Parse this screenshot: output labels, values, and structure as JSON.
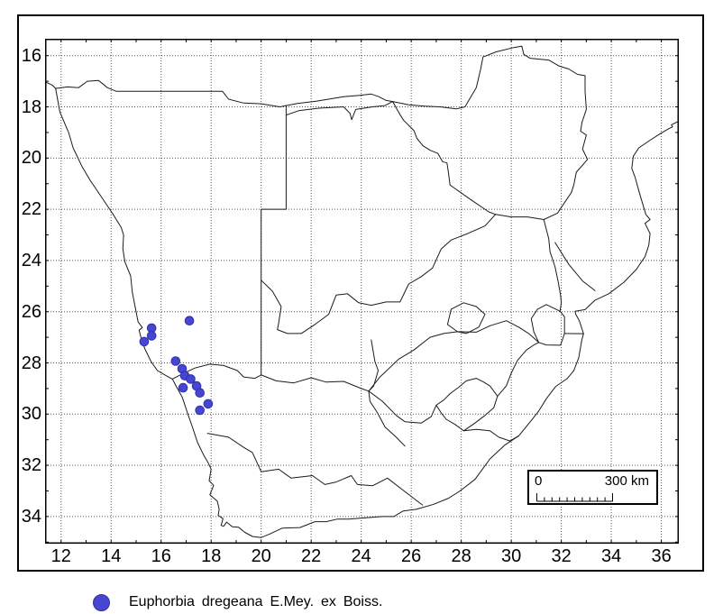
{
  "figure": {
    "background": "#ffffff",
    "region": "Southern Africa distribution map"
  },
  "chart_data": {
    "type": "scatter",
    "title": "",
    "xlabel": "",
    "ylabel": "",
    "x_axis": {
      "unit": "degrees East longitude",
      "ticks": [
        12,
        14,
        16,
        18,
        20,
        22,
        24,
        26,
        28,
        30,
        32,
        34,
        36
      ],
      "range": [
        11.36,
        36.7
      ],
      "minor_tick_step": 1
    },
    "y_axis": {
      "unit": "degrees South latitude",
      "ticks": [
        16,
        18,
        20,
        22,
        24,
        26,
        28,
        30,
        32,
        34
      ],
      "range": [
        15.34,
        35.06
      ],
      "inverted": true,
      "minor_tick_step": 1
    },
    "grid": {
      "style": "dotted",
      "interval_degrees": 2
    },
    "series": [
      {
        "name": "Euphorbia dregeana E.Mey. ex Boiss.",
        "marker": "circle",
        "color": "#4646d0",
        "edge_color": "#2f2fae",
        "points_lon_lat": [
          [
            17.13,
            26.35
          ],
          [
            15.62,
            26.64
          ],
          [
            15.62,
            26.94
          ],
          [
            15.32,
            27.17
          ],
          [
            16.58,
            27.93
          ],
          [
            16.84,
            28.23
          ],
          [
            16.95,
            28.5
          ],
          [
            17.18,
            28.63
          ],
          [
            17.42,
            28.9
          ],
          [
            16.88,
            28.97
          ],
          [
            17.55,
            29.17
          ],
          [
            17.88,
            29.6
          ],
          [
            17.55,
            29.85
          ]
        ]
      }
    ]
  },
  "scalebar": {
    "zero_label": "0",
    "max_label": "300 km",
    "divisions": 10
  },
  "legend": {
    "marker_color": "#4646d0",
    "label": "Euphorbia dregeana E.Mey. ex Boiss."
  },
  "colors": {
    "map_line": "#1b1b1b",
    "grid_dots": "#555555",
    "frame": "#000000"
  }
}
